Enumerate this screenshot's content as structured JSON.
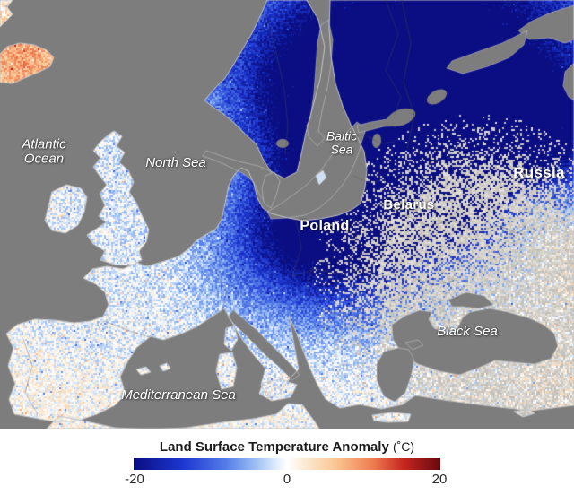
{
  "map": {
    "labels": {
      "atlantic_ocean": "Atlantic Ocean",
      "north_sea": "North Sea",
      "baltic_sea": "Baltic Sea",
      "poland": "Poland",
      "belarus": "Belarus",
      "russia": "Russia",
      "black_sea": "Black Sea",
      "mediterranean_sea": "Mediterranean Sea"
    },
    "colors": {
      "ocean_gray": "#7d7d7d",
      "coastline": "#c6c6c6",
      "border": "#5f5f5f",
      "label_text": "#ffffff"
    }
  },
  "legend": {
    "title": "Land Surface Temperature Anomaly",
    "unit": "(˚C)",
    "min": -20,
    "max": 20,
    "ticks": [
      "-20",
      "0",
      "20"
    ],
    "gradient": [
      {
        "t": 0.0,
        "c": "#0a0e82"
      },
      {
        "t": 0.16,
        "c": "#1c36d0"
      },
      {
        "t": 0.3,
        "c": "#547ce8"
      },
      {
        "t": 0.4,
        "c": "#9ec0f2"
      },
      {
        "t": 0.47,
        "c": "#e4f0fb"
      },
      {
        "t": 0.5,
        "c": "#ffffff"
      },
      {
        "t": 0.56,
        "c": "#fcead2"
      },
      {
        "t": 0.66,
        "c": "#f9c592"
      },
      {
        "t": 0.78,
        "c": "#ee7d50"
      },
      {
        "t": 0.88,
        "c": "#c62620"
      },
      {
        "t": 1.0,
        "c": "#66090e"
      }
    ]
  }
}
